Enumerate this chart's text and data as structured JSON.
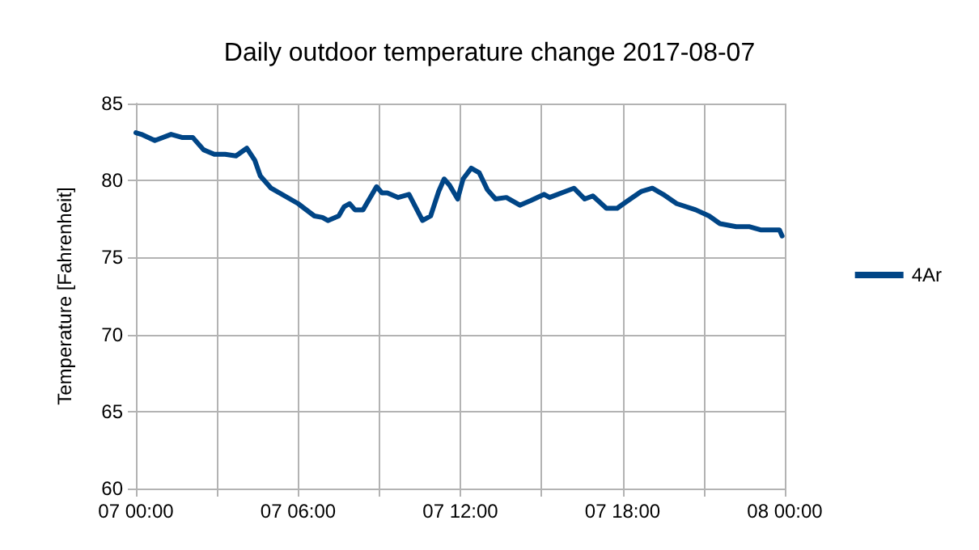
{
  "chart_data": {
    "type": "line",
    "title": "Daily outdoor temperature change 2017-08-07",
    "ylabel": "Temperature [Fahrenheit]",
    "x": [
      "2017-08-07T00:00",
      "2017-08-07T00:12",
      "2017-08-07T00:42",
      "2017-08-07T01:18",
      "2017-08-07T01:42",
      "2017-08-07T02:06",
      "2017-08-07T02:30",
      "2017-08-07T02:54",
      "2017-08-07T03:18",
      "2017-08-07T03:42",
      "2017-08-07T04:06",
      "2017-08-07T04:24",
      "2017-08-07T04:36",
      "2017-08-07T05:00",
      "2017-08-07T06:00",
      "2017-08-07T06:36",
      "2017-08-07T06:54",
      "2017-08-07T07:06",
      "2017-08-07T07:30",
      "2017-08-07T07:42",
      "2017-08-07T07:54",
      "2017-08-07T08:06",
      "2017-08-07T08:24",
      "2017-08-07T08:54",
      "2017-08-07T09:06",
      "2017-08-07T09:18",
      "2017-08-07T09:42",
      "2017-08-07T10:06",
      "2017-08-07T10:36",
      "2017-08-07T10:54",
      "2017-08-07T11:12",
      "2017-08-07T11:24",
      "2017-08-07T11:36",
      "2017-08-07T11:54",
      "2017-08-07T12:06",
      "2017-08-07T12:24",
      "2017-08-07T12:42",
      "2017-08-07T13:00",
      "2017-08-07T13:18",
      "2017-08-07T13:42",
      "2017-08-07T14:12",
      "2017-08-07T14:36",
      "2017-08-07T15:06",
      "2017-08-07T15:18",
      "2017-08-07T15:54",
      "2017-08-07T16:12",
      "2017-08-07T16:36",
      "2017-08-07T16:54",
      "2017-08-07T17:24",
      "2017-08-07T17:48",
      "2017-08-07T18:12",
      "2017-08-07T18:42",
      "2017-08-07T19:06",
      "2017-08-07T19:30",
      "2017-08-07T20:00",
      "2017-08-07T20:42",
      "2017-08-07T21:12",
      "2017-08-07T21:36",
      "2017-08-07T22:12",
      "2017-08-07T22:42",
      "2017-08-07T23:06",
      "2017-08-07T23:48",
      "2017-08-07T23:54"
    ],
    "series": [
      {
        "name": "4Ar",
        "color": "#004586",
        "values": [
          83.1,
          83.0,
          82.6,
          83.0,
          82.8,
          82.8,
          82.0,
          81.7,
          81.7,
          81.6,
          82.1,
          81.3,
          80.3,
          79.5,
          78.5,
          77.7,
          77.6,
          77.4,
          77.7,
          78.3,
          78.5,
          78.1,
          78.1,
          79.6,
          79.2,
          79.2,
          78.9,
          79.1,
          77.4,
          77.7,
          79.3,
          80.1,
          79.7,
          78.8,
          80.1,
          80.8,
          80.5,
          79.4,
          78.8,
          78.9,
          78.4,
          78.7,
          79.1,
          78.9,
          79.3,
          79.5,
          78.8,
          79.0,
          78.2,
          78.2,
          78.7,
          79.3,
          79.5,
          79.1,
          78.5,
          78.1,
          77.7,
          77.2,
          77.0,
          77.0,
          76.8,
          76.8,
          76.4
        ]
      }
    ],
    "xlim": [
      "2017-08-07T00:00",
      "2017-08-08T00:00"
    ],
    "xticks": [
      {
        "value": "2017-08-07T00:00",
        "label": "07 00:00"
      },
      {
        "value": "2017-08-07T03:00",
        "label": null
      },
      {
        "value": "2017-08-07T06:00",
        "label": "07 06:00"
      },
      {
        "value": "2017-08-07T09:00",
        "label": null
      },
      {
        "value": "2017-08-07T12:00",
        "label": "07 12:00"
      },
      {
        "value": "2017-08-07T15:00",
        "label": null
      },
      {
        "value": "2017-08-07T18:00",
        "label": "07 18:00"
      },
      {
        "value": "2017-08-07T21:00",
        "label": null
      },
      {
        "value": "2017-08-08T00:00",
        "label": "08 00:00"
      }
    ],
    "ylim": [
      60,
      85
    ],
    "yticks": [
      60,
      65,
      70,
      75,
      80,
      85
    ],
    "grid": true,
    "legend": "right",
    "marker": "none",
    "line_style": "solid"
  }
}
